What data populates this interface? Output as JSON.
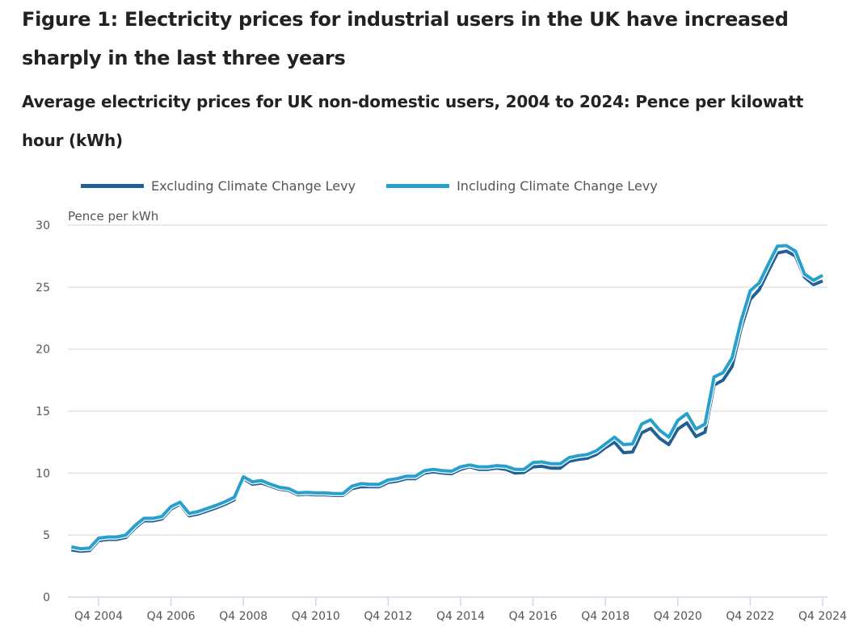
{
  "title": "Figure 1: Electricity prices for industrial users in the UK have increased sharply in the last three years",
  "subtitle": "Average electricity prices for UK non-domestic users, 2004 to 2024: Pence per kilowatt hour (kWh)",
  "colors": {
    "excluding": "#206095",
    "including": "#27a0cc",
    "grid": "#e2e2e3",
    "axis": "#d0d8e8"
  },
  "chart_data": {
    "type": "line",
    "title": "Average electricity prices for UK non-domestic users, 2004 to 2024: Pence per kilowatt hour (kWh)",
    "xlabel": "",
    "ylabel": "Pence per kWh",
    "ylim": [
      0,
      30
    ],
    "yticks": [
      0,
      5,
      10,
      15,
      20,
      25,
      30
    ],
    "xtick_labels": [
      "Q4 2004",
      "Q4 2006",
      "Q4 2008",
      "Q4 2010",
      "Q4 2012",
      "Q4 2014",
      "Q4 2016",
      "Q4 2018",
      "Q4 2020",
      "Q4 2022",
      "Q4 2024"
    ],
    "xtick_indices": [
      3,
      11,
      19,
      27,
      35,
      43,
      51,
      59,
      67,
      75,
      83
    ],
    "grid": true,
    "legend_position": "top-left",
    "x_start": "Q1 2004",
    "x_end": "Q4 2024",
    "series": [
      {
        "name": "Excluding Climate Change Levy",
        "values": [
          3.8,
          3.7,
          3.75,
          4.55,
          4.65,
          4.65,
          4.8,
          5.55,
          6.15,
          6.15,
          6.3,
          7.1,
          7.5,
          6.55,
          6.7,
          6.95,
          7.2,
          7.5,
          7.85,
          9.55,
          9.1,
          9.2,
          8.95,
          8.7,
          8.6,
          8.25,
          8.3,
          8.25,
          8.25,
          8.2,
          8.2,
          8.75,
          8.9,
          8.9,
          8.9,
          9.25,
          9.35,
          9.55,
          9.55,
          10.0,
          10.1,
          10.0,
          9.95,
          10.3,
          10.5,
          10.3,
          10.3,
          10.4,
          10.3,
          10.0,
          10.05,
          10.5,
          10.55,
          10.4,
          10.4,
          10.95,
          11.1,
          11.2,
          11.5,
          12.05,
          12.5,
          11.65,
          11.7,
          13.25,
          13.6,
          12.8,
          12.3,
          13.55,
          14.05,
          12.95,
          13.3,
          17.1,
          17.5,
          18.6,
          21.7,
          24.0,
          24.8,
          26.3,
          27.75,
          27.9,
          27.5,
          25.8,
          25.2,
          25.5
        ]
      },
      {
        "name": "Including Climate Change Levy",
        "values": [
          4.05,
          3.9,
          3.95,
          4.75,
          4.85,
          4.85,
          5.0,
          5.75,
          6.35,
          6.35,
          6.5,
          7.3,
          7.65,
          6.75,
          6.9,
          7.15,
          7.4,
          7.7,
          8.05,
          9.7,
          9.3,
          9.4,
          9.1,
          8.85,
          8.75,
          8.4,
          8.45,
          8.4,
          8.4,
          8.35,
          8.35,
          8.95,
          9.15,
          9.1,
          9.1,
          9.45,
          9.55,
          9.75,
          9.75,
          10.2,
          10.3,
          10.2,
          10.15,
          10.5,
          10.65,
          10.5,
          10.5,
          10.6,
          10.55,
          10.3,
          10.3,
          10.85,
          10.9,
          10.75,
          10.75,
          11.25,
          11.4,
          11.5,
          11.8,
          12.35,
          12.9,
          12.3,
          12.35,
          13.95,
          14.3,
          13.45,
          12.9,
          14.25,
          14.8,
          13.55,
          13.95,
          17.75,
          18.1,
          19.3,
          22.3,
          24.7,
          25.35,
          26.85,
          28.3,
          28.35,
          27.9,
          26.05,
          25.55,
          25.95
        ]
      }
    ]
  }
}
